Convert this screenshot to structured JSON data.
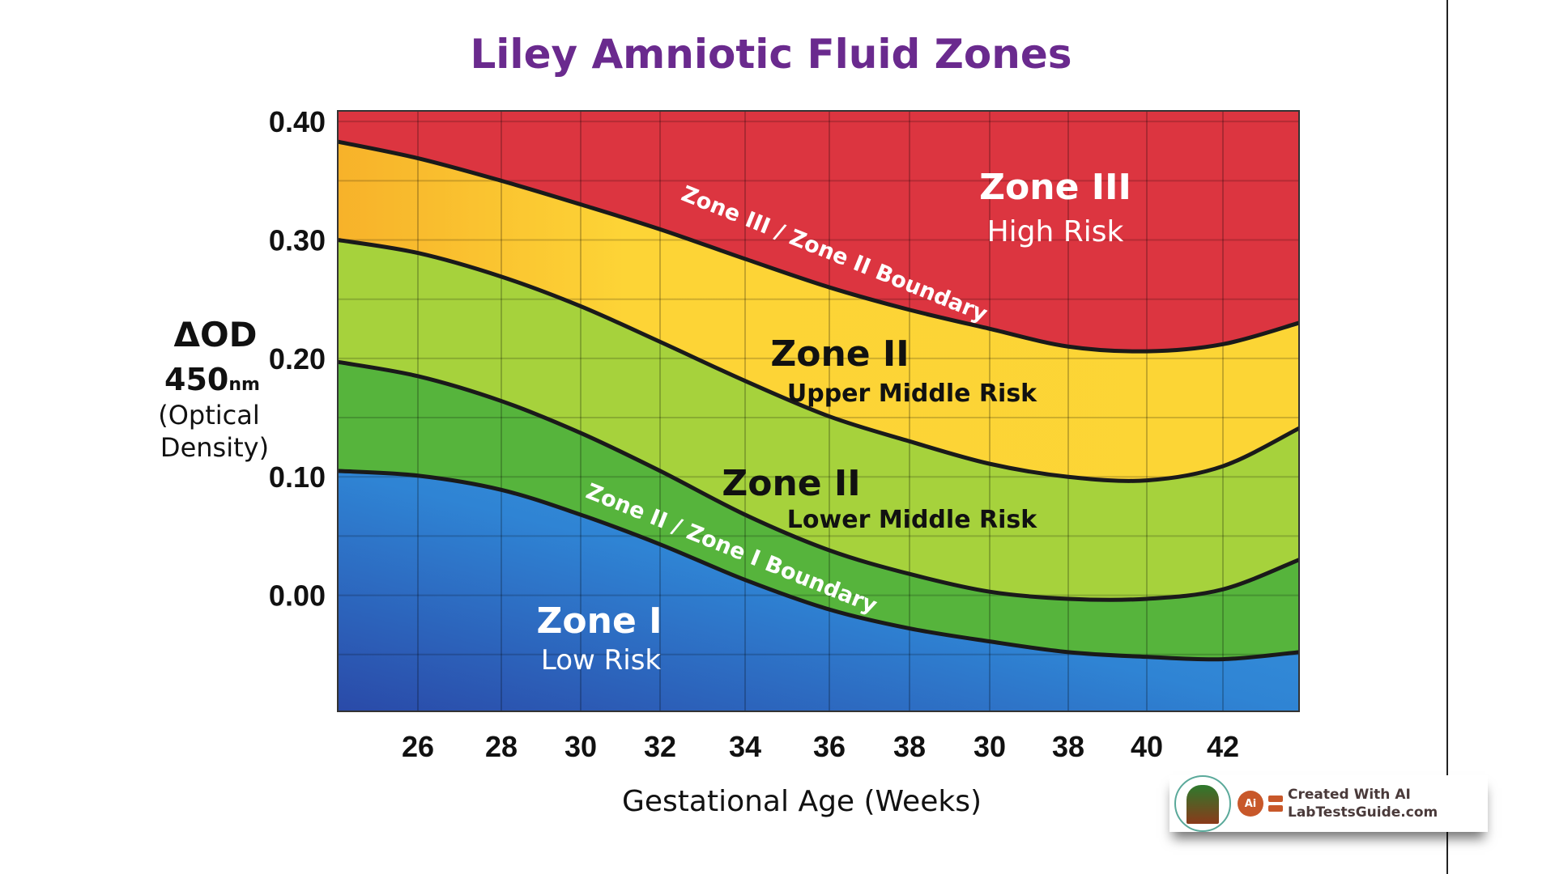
{
  "chart_data": {
    "type": "area",
    "title": "Liley Amniotic Fluid Zones",
    "xlabel": "Gestational Age (Weeks)",
    "ylabel": {
      "line1": "ΔOD",
      "line2_main": "450",
      "line2_unit": "nm",
      "line3": "(Optical",
      "line4": "Density)"
    },
    "categories": [
      "26",
      "28",
      "30",
      "32",
      "34",
      "36",
      "38",
      "30",
      "38",
      "40",
      "42"
    ],
    "y_ticks": [
      "0.40",
      "0.30",
      "0.20",
      "0.10",
      "0.00"
    ],
    "y_tick_values": [
      0.4,
      0.3,
      0.2,
      0.1,
      0.0
    ],
    "ylim": [
      -0.098,
      0.409
    ],
    "grid": true,
    "boundary_sample_points": "plot left edge, each category tick, plot right edge",
    "boundaries": [
      {
        "name": "Zone III / Zone II Boundary",
        "values": [
          0.383,
          0.369,
          0.35,
          0.33,
          0.309,
          0.284,
          0.26,
          0.241,
          0.225,
          0.21,
          0.206,
          0.212,
          0.23
        ]
      },
      {
        "values": [
          0.3,
          0.289,
          0.269,
          0.244,
          0.214,
          0.181,
          0.151,
          0.13,
          0.111,
          0.1,
          0.097,
          0.109,
          0.141
        ]
      },
      {
        "values": [
          0.197,
          0.185,
          0.164,
          0.137,
          0.105,
          0.068,
          0.038,
          0.018,
          0.003,
          -0.003,
          -0.003,
          0.005,
          0.03
        ]
      },
      {
        "name": "Zone II / Zone I Boundary",
        "values": [
          0.105,
          0.101,
          0.089,
          0.068,
          0.043,
          0.013,
          -0.012,
          -0.028,
          -0.039,
          -0.048,
          -0.052,
          -0.054,
          -0.048
        ]
      }
    ],
    "zones": [
      {
        "name": "Zone III",
        "sub": "High Risk",
        "color": "#dc3540"
      },
      {
        "name": "Zone II",
        "sub": "Upper Middle Risk",
        "color": "#fcd535"
      },
      {
        "name": "Zone II",
        "sub": "Lower Middle Risk",
        "color": "#a6d23c"
      },
      {
        "name": "",
        "sub": "",
        "color": "#56b43c"
      },
      {
        "name": "Zone I",
        "sub": "Low Risk",
        "color": "#2f86d6"
      }
    ],
    "title_color": "#6a2a8e"
  },
  "watermark": {
    "line1": "Created With AI",
    "line2": "LabTestsGuide.com",
    "badge": "Ai",
    "seal_text": "LabTestsGuide.com"
  }
}
